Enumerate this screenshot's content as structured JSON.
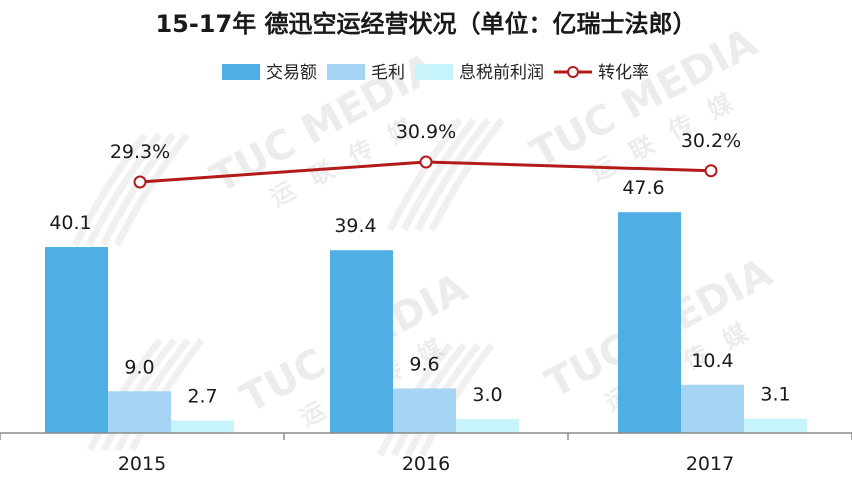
{
  "watermark": {
    "brand": "TUC MEDIA",
    "sub": "运 联 传 媒"
  },
  "chart_data": {
    "type": "bar",
    "title": "15-17年 德迅空运经营状况（单位：亿瑞士法郎）",
    "categories": [
      "2015",
      "2016",
      "2017"
    ],
    "series": [
      {
        "name": "交易额",
        "values": [
          40.1,
          39.4,
          47.6
        ],
        "labels": [
          "40.1",
          "39.4",
          "47.6"
        ],
        "color": "#4faee3"
      },
      {
        "name": "毛利",
        "values": [
          9.0,
          9.6,
          10.4
        ],
        "labels": [
          "9.0",
          "9.6",
          "10.4"
        ],
        "color": "#a6d4f5"
      },
      {
        "name": "息税前利润",
        "values": [
          2.7,
          3.0,
          3.1
        ],
        "labels": [
          "2.7",
          "3.0",
          "3.1"
        ],
        "color": "#c7f4fb"
      }
    ],
    "line_series": {
      "name": "转化率",
      "values": [
        29.3,
        30.9,
        30.2
      ],
      "labels": [
        "29.3%",
        "30.9%",
        "30.2%"
      ],
      "color": "#b31b1b"
    },
    "ylim": [
      0,
      60
    ],
    "line_ylim": [
      0,
      40
    ],
    "legend_position": "top",
    "grid": false
  }
}
